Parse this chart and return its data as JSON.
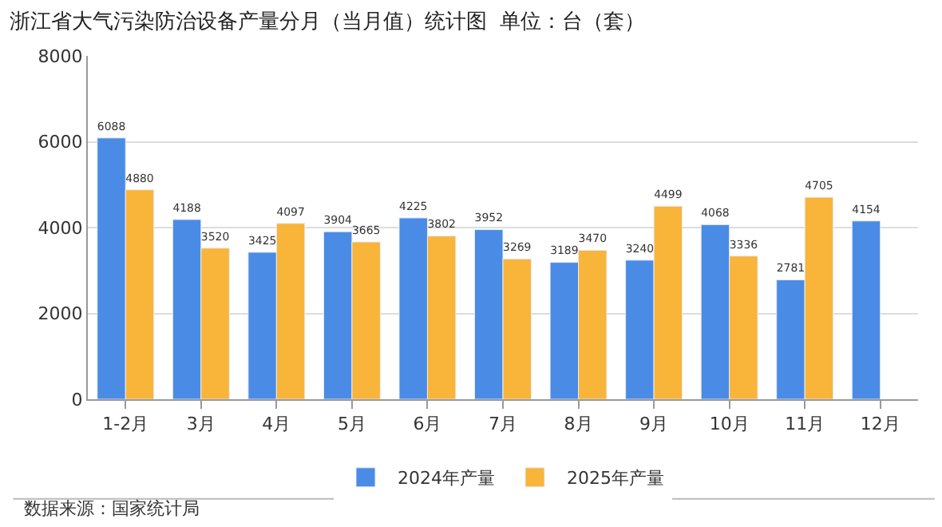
{
  "chart_data": {
    "type": "bar",
    "title": "浙江省大气污染防治设备产量分月（当月值）统计图  单位：台（套）",
    "categories": [
      "1-2月",
      "3月",
      "4月",
      "5月",
      "6月",
      "7月",
      "8月",
      "9月",
      "10月",
      "11月",
      "12月"
    ],
    "series": [
      {
        "name": "2024年产量",
        "color": "#4a8be6",
        "values": [
          6088,
          4188,
          3425,
          3904,
          4225,
          3952,
          3189,
          3240,
          4068,
          2781,
          4154
        ]
      },
      {
        "name": "2025年产量",
        "color": "#f9b43a",
        "values": [
          4880,
          3520,
          4097,
          3665,
          3802,
          3269,
          3470,
          4499,
          3336,
          4705,
          null
        ]
      }
    ],
    "ylim": [
      0,
      8000
    ],
    "yticks": [
      0,
      2000,
      4000,
      6000,
      8000
    ],
    "grid": "y",
    "legend": "bottom",
    "data_labels": true,
    "annotations": [
      "数据来源：国家统计局"
    ]
  }
}
